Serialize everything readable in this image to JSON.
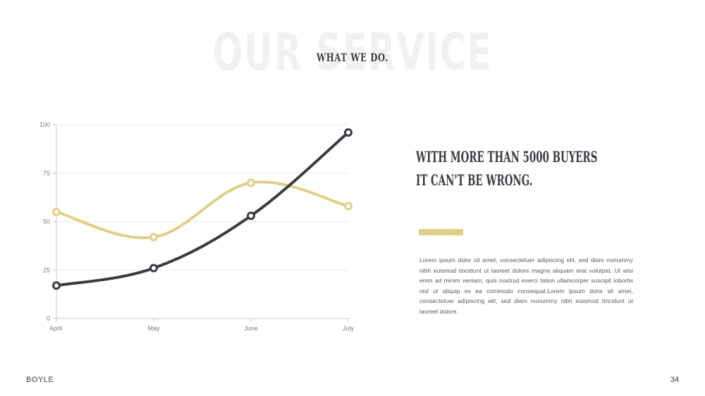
{
  "slide": {
    "background_title": "OUR SERVICE",
    "subtitle": "WHAT WE DO.",
    "headline": "WITH MORE THAN 5000 BUYERS IT CAN'T BE WRONG.",
    "body": "Lorem ipsum dolor sit amet, consectetuer adipiscing elit, sed diam nonummy nibh euismod tincidunt ut laoreet dolore magna aliquam erat volutpat. Ut wisi enim ad minim veniam, quis nostrud exerci tation ullamcorper suscipit lobortis nisl ut aliquip ex ea commodo consequat.Lorem ipsum dolor sit amet, consectetuer adipiscing elit, sed diam nonummy nibh euismod tincidunt ut laoreet dolore.",
    "brand": "BOYLE",
    "page_number": "34",
    "accent_color": "#e0cf87"
  },
  "chart_data": {
    "type": "line",
    "smooth": true,
    "categories": [
      "April",
      "May",
      "June",
      "July"
    ],
    "series": [
      {
        "values": [
          17,
          26,
          53,
          96
        ],
        "color": "#3d3b42"
      },
      {
        "values": [
          55,
          42,
          70,
          58
        ],
        "color": "#e0cf87"
      }
    ],
    "ylim": [
      0,
      100
    ],
    "yticks": [
      0,
      25,
      50,
      75,
      100
    ],
    "grid": true,
    "legend": "none"
  }
}
